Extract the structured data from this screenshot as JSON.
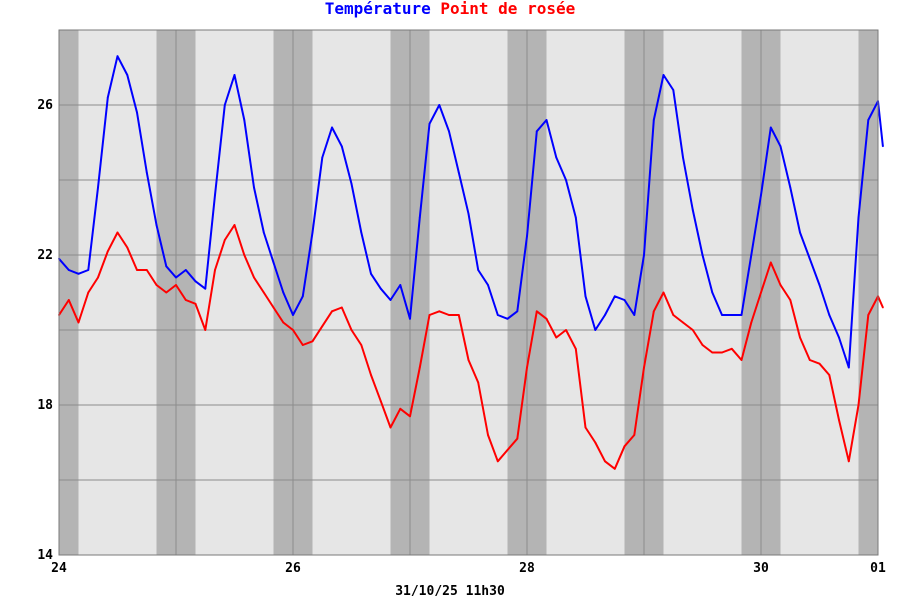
{
  "chart_data": {
    "type": "line",
    "title_parts": [
      {
        "text": "Température",
        "color": "#0000ff"
      },
      {
        "text": "Point de rosée",
        "color": "#ff0000"
      }
    ],
    "caption": "31/10/25 11h30",
    "ylim": [
      14,
      28
    ],
    "y_ticks": [
      14,
      18,
      22,
      26
    ],
    "y_gridlines": [
      16,
      18,
      20,
      22,
      24,
      26
    ],
    "xlim": [
      "24",
      "01"
    ],
    "x_tick_labels": [
      "24",
      "26",
      "28",
      "30",
      "01"
    ],
    "background": {
      "day_color": "#dcdcdc",
      "night_color": "#b4b4b4",
      "day_light_color": "#e6e6e6",
      "grid_color": "#8c8c8c"
    },
    "series": [
      {
        "name": "Température",
        "color": "#0000ff",
        "points": [
          [
            "24 00h",
            21.9
          ],
          [
            "24 02h",
            21.6
          ],
          [
            "24 04h",
            21.5
          ],
          [
            "24 06h",
            21.6
          ],
          [
            "24 08h",
            23.8
          ],
          [
            "24 10h",
            26.2
          ],
          [
            "24 12h",
            27.3
          ],
          [
            "24 14h",
            26.8
          ],
          [
            "24 16h",
            25.8
          ],
          [
            "24 18h",
            24.2
          ],
          [
            "24 20h",
            22.8
          ],
          [
            "24 22h",
            21.7
          ],
          [
            "25 00h",
            21.4
          ],
          [
            "25 02h",
            21.6
          ],
          [
            "25 04h",
            21.3
          ],
          [
            "25 06h",
            21.1
          ],
          [
            "25 08h",
            23.6
          ],
          [
            "25 10h",
            26.0
          ],
          [
            "25 12h",
            26.8
          ],
          [
            "25 14h",
            25.6
          ],
          [
            "25 16h",
            23.8
          ],
          [
            "25 18h",
            22.6
          ],
          [
            "25 20h",
            21.8
          ],
          [
            "25 22h",
            21.0
          ],
          [
            "26 00h",
            20.4
          ],
          [
            "26 02h",
            20.9
          ],
          [
            "26 04h",
            22.6
          ],
          [
            "26 06h",
            24.6
          ],
          [
            "26 08h",
            25.4
          ],
          [
            "26 10h",
            24.9
          ],
          [
            "26 12h",
            23.9
          ],
          [
            "26 14h",
            22.6
          ],
          [
            "26 16h",
            21.5
          ],
          [
            "26 18h",
            21.1
          ],
          [
            "26 20h",
            20.8
          ],
          [
            "26 22h",
            21.2
          ],
          [
            "27 00h",
            20.3
          ],
          [
            "27 02h",
            23.0
          ],
          [
            "27 04h",
            25.5
          ],
          [
            "27 06h",
            26.0
          ],
          [
            "27 08h",
            25.3
          ],
          [
            "27 10h",
            24.2
          ],
          [
            "27 12h",
            23.1
          ],
          [
            "27 14h",
            21.6
          ],
          [
            "27 16h",
            21.2
          ],
          [
            "27 18h",
            20.4
          ],
          [
            "27 20h",
            20.3
          ],
          [
            "27 22h",
            20.5
          ],
          [
            "28 00h",
            22.5
          ],
          [
            "28 02h",
            25.3
          ],
          [
            "28 04h",
            25.6
          ],
          [
            "28 06h",
            24.6
          ],
          [
            "28 08h",
            24.0
          ],
          [
            "28 10h",
            23.0
          ],
          [
            "28 12h",
            20.9
          ],
          [
            "28 14h",
            20.0
          ],
          [
            "28 16h",
            20.4
          ],
          [
            "28 18h",
            20.9
          ],
          [
            "28 20h",
            20.8
          ],
          [
            "28 22h",
            20.4
          ],
          [
            "29 00h",
            22.0
          ],
          [
            "29 02h",
            25.6
          ],
          [
            "29 04h",
            26.8
          ],
          [
            "29 06h",
            26.4
          ],
          [
            "29 08h",
            24.6
          ],
          [
            "29 10h",
            23.2
          ],
          [
            "29 12h",
            22.0
          ],
          [
            "29 14h",
            21.0
          ],
          [
            "29 16h",
            20.4
          ],
          [
            "29 18h",
            20.4
          ],
          [
            "29 20h",
            20.4
          ],
          [
            "29 22h",
            22.0
          ],
          [
            "30 00h",
            23.6
          ],
          [
            "30 02h",
            25.4
          ],
          [
            "30 04h",
            24.9
          ],
          [
            "30 06h",
            23.8
          ],
          [
            "30 08h",
            22.6
          ],
          [
            "30 10h",
            21.9
          ],
          [
            "30 12h",
            21.2
          ],
          [
            "30 14h",
            20.4
          ],
          [
            "30 16h",
            19.8
          ],
          [
            "30 18h",
            19.0
          ],
          [
            "30 20h",
            23.0
          ],
          [
            "30 22h",
            25.6
          ],
          [
            "31 00h",
            26.1
          ],
          [
            "31 01h",
            24.9
          ]
        ]
      },
      {
        "name": "Point de rosée",
        "color": "#ff0000",
        "points": [
          [
            "24 00h",
            20.4
          ],
          [
            "24 02h",
            20.8
          ],
          [
            "24 04h",
            20.2
          ],
          [
            "24 06h",
            21.0
          ],
          [
            "24 08h",
            21.4
          ],
          [
            "24 10h",
            22.1
          ],
          [
            "24 12h",
            22.6
          ],
          [
            "24 14h",
            22.2
          ],
          [
            "24 16h",
            21.6
          ],
          [
            "24 18h",
            21.6
          ],
          [
            "24 20h",
            21.2
          ],
          [
            "24 22h",
            21.0
          ],
          [
            "25 00h",
            21.2
          ],
          [
            "25 02h",
            20.8
          ],
          [
            "25 04h",
            20.7
          ],
          [
            "25 06h",
            20.0
          ],
          [
            "25 08h",
            21.6
          ],
          [
            "25 10h",
            22.4
          ],
          [
            "25 12h",
            22.8
          ],
          [
            "25 14h",
            22.0
          ],
          [
            "25 16h",
            21.4
          ],
          [
            "25 18h",
            21.0
          ],
          [
            "25 20h",
            20.6
          ],
          [
            "25 22h",
            20.2
          ],
          [
            "26 00h",
            20.0
          ],
          [
            "26 02h",
            19.6
          ],
          [
            "26 04h",
            19.7
          ],
          [
            "26 06h",
            20.1
          ],
          [
            "26 08h",
            20.5
          ],
          [
            "26 10h",
            20.6
          ],
          [
            "26 12h",
            20.0
          ],
          [
            "26 14h",
            19.6
          ],
          [
            "26 16h",
            18.8
          ],
          [
            "26 18h",
            18.1
          ],
          [
            "26 20h",
            17.4
          ],
          [
            "26 22h",
            17.9
          ],
          [
            "27 00h",
            17.7
          ],
          [
            "27 02h",
            19.0
          ],
          [
            "27 04h",
            20.4
          ],
          [
            "27 06h",
            20.5
          ],
          [
            "27 08h",
            20.4
          ],
          [
            "27 10h",
            20.4
          ],
          [
            "27 12h",
            19.2
          ],
          [
            "27 14h",
            18.6
          ],
          [
            "27 16h",
            17.2
          ],
          [
            "27 18h",
            16.5
          ],
          [
            "27 20h",
            16.8
          ],
          [
            "27 22h",
            17.1
          ],
          [
            "28 00h",
            19.0
          ],
          [
            "28 02h",
            20.5
          ],
          [
            "28 04h",
            20.3
          ],
          [
            "28 06h",
            19.8
          ],
          [
            "28 08h",
            20.0
          ],
          [
            "28 10h",
            19.5
          ],
          [
            "28 12h",
            17.4
          ],
          [
            "28 14h",
            17.0
          ],
          [
            "28 16h",
            16.5
          ],
          [
            "28 18h",
            16.3
          ],
          [
            "28 20h",
            16.9
          ],
          [
            "28 22h",
            17.2
          ],
          [
            "29 00h",
            19.0
          ],
          [
            "29 02h",
            20.5
          ],
          [
            "29 04h",
            21.0
          ],
          [
            "29 06h",
            20.4
          ],
          [
            "29 08h",
            20.2
          ],
          [
            "29 10h",
            20.0
          ],
          [
            "29 12h",
            19.6
          ],
          [
            "29 14h",
            19.4
          ],
          [
            "29 16h",
            19.4
          ],
          [
            "29 18h",
            19.5
          ],
          [
            "29 20h",
            19.2
          ],
          [
            "29 22h",
            20.2
          ],
          [
            "30 00h",
            21.0
          ],
          [
            "30 02h",
            21.8
          ],
          [
            "30 04h",
            21.2
          ],
          [
            "30 06h",
            20.8
          ],
          [
            "30 08h",
            19.8
          ],
          [
            "30 10h",
            19.2
          ],
          [
            "30 12h",
            19.1
          ],
          [
            "30 14h",
            18.8
          ],
          [
            "30 16h",
            17.6
          ],
          [
            "30 18h",
            16.5
          ],
          [
            "30 20h",
            18.0
          ],
          [
            "30 22h",
            20.4
          ],
          [
            "31 00h",
            20.9
          ],
          [
            "31 01h",
            20.6
          ]
        ]
      }
    ]
  }
}
